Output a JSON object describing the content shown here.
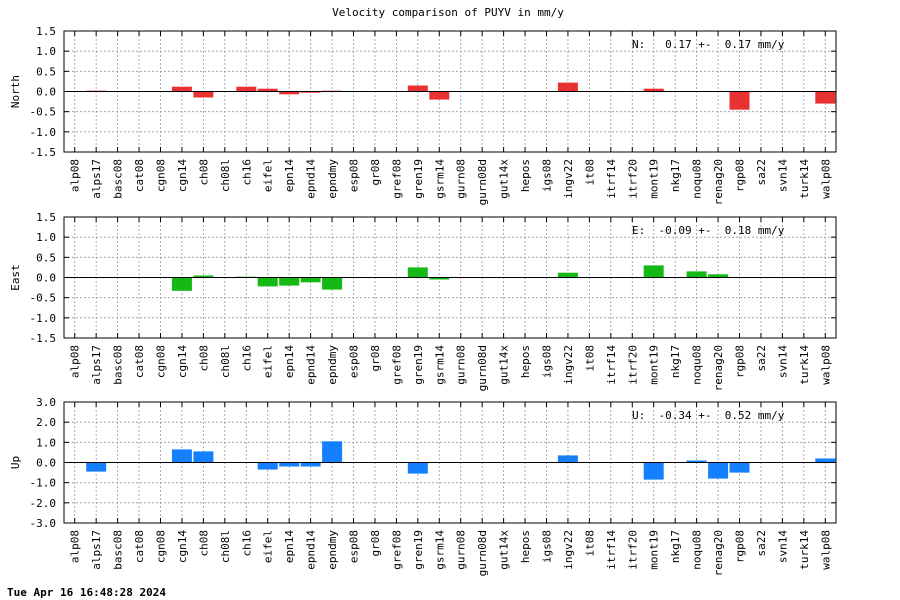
{
  "title": "Velocity comparison of PUYV in mm/y",
  "timestamp": "Tue Apr 16 16:48:28 2024",
  "colors": {
    "north": "#e83232",
    "east": "#14b914",
    "up": "#1480ff"
  },
  "chart_data": [
    {
      "type": "bar",
      "ylabel": "North",
      "ylim": [
        -1.5,
        1.5
      ],
      "yticks": [
        "-1.5",
        "-1.0",
        "-0.5",
        "0.0",
        "0.5",
        "1.0",
        "1.5"
      ],
      "ytick_values": [
        -1.5,
        -1.0,
        -0.5,
        0.0,
        0.5,
        1.0,
        1.5
      ],
      "annotation": "N:   0.17 +-  0.17 mm/y",
      "grid": true,
      "color": "#e83232",
      "categories": [
        "alp08",
        "alps17",
        "basc08",
        "cat08",
        "cgn08",
        "cgn14",
        "ch08",
        "ch08l",
        "ch16",
        "eifel",
        "epn14",
        "epnd14",
        "epndmy",
        "esp08",
        "gr08",
        "gref08",
        "gren19",
        "gsrm14",
        "gurn08",
        "gurn08d",
        "gut14x",
        "hepos",
        "igs08",
        "ingv22",
        "it08",
        "itrf14",
        "itrf20",
        "mont19",
        "nkg17",
        "noqu08",
        "renag20",
        "rgp08",
        "sa22",
        "svn14",
        "turk14",
        "walp08"
      ],
      "values": [
        0,
        0.02,
        0,
        0,
        0,
        0.12,
        -0.15,
        0,
        0.12,
        0.07,
        -0.07,
        -0.03,
        0.02,
        0,
        0,
        0,
        0.15,
        -0.2,
        0,
        0,
        0,
        0,
        0,
        0.22,
        0,
        0,
        0,
        0.07,
        0,
        0,
        0,
        -0.45,
        0,
        0,
        0,
        -0.3
      ]
    },
    {
      "type": "bar",
      "ylabel": "East",
      "ylim": [
        -1.5,
        1.5
      ],
      "yticks": [
        "-1.5",
        "-1.0",
        "-0.5",
        "0.0",
        "0.5",
        "1.0",
        "1.5"
      ],
      "ytick_values": [
        -1.5,
        -1.0,
        -0.5,
        0.0,
        0.5,
        1.0,
        1.5
      ],
      "annotation": "E:  -0.09 +-  0.18 mm/y",
      "grid": true,
      "color": "#14b914",
      "categories": [
        "alp08",
        "alps17",
        "basc08",
        "cat08",
        "cgn08",
        "cgn14",
        "ch08",
        "ch08l",
        "ch16",
        "eifel",
        "epn14",
        "epnd14",
        "epndmy",
        "esp08",
        "gr08",
        "gref08",
        "gren19",
        "gsrm14",
        "gurn08",
        "gurn08d",
        "gut14x",
        "hepos",
        "igs08",
        "ingv22",
        "it08",
        "itrf14",
        "itrf20",
        "mont19",
        "nkg17",
        "noqu08",
        "renag20",
        "rgp08",
        "sa22",
        "svn14",
        "turk14",
        "walp08"
      ],
      "values": [
        0,
        0,
        0,
        0,
        0,
        -0.33,
        0.05,
        0,
        0.02,
        -0.22,
        -0.2,
        -0.12,
        -0.3,
        0,
        0,
        0,
        0.25,
        -0.05,
        0,
        0,
        0,
        0,
        0,
        0.12,
        0,
        0,
        0,
        0.3,
        0,
        0.15,
        0.08,
        0,
        0,
        0,
        0,
        0
      ]
    },
    {
      "type": "bar",
      "ylabel": "Up",
      "ylim": [
        -3.0,
        3.0
      ],
      "yticks": [
        "-3.0",
        "-2.0",
        "-1.0",
        "0.0",
        "1.0",
        "2.0",
        "3.0"
      ],
      "ytick_values": [
        -3.0,
        -2.0,
        -1.0,
        0.0,
        1.0,
        2.0,
        3.0
      ],
      "annotation": "U:  -0.34 +-  0.52 mm/y",
      "grid": true,
      "color": "#1480ff",
      "categories": [
        "alp08",
        "alps17",
        "basc08",
        "cat08",
        "cgn08",
        "cgn14",
        "ch08",
        "ch08l",
        "ch16",
        "eifel",
        "epn14",
        "epnd14",
        "epndmy",
        "esp08",
        "gr08",
        "gref08",
        "gren19",
        "gsrm14",
        "gurn08",
        "gurn08d",
        "gut14x",
        "hepos",
        "igs08",
        "ingv22",
        "it08",
        "itrf14",
        "itrf20",
        "mont19",
        "nkg17",
        "noqu08",
        "renag20",
        "rgp08",
        "sa22",
        "svn14",
        "turk14",
        "walp08"
      ],
      "values": [
        0,
        -0.45,
        0,
        0,
        0,
        0.65,
        0.55,
        0,
        0,
        -0.35,
        -0.2,
        -0.2,
        1.05,
        0,
        0,
        0,
        -0.55,
        0,
        0,
        0,
        0,
        0,
        0,
        0.35,
        0,
        0,
        0,
        -0.85,
        0,
        0.1,
        -0.8,
        -0.5,
        0,
        0,
        0,
        0.2
      ]
    }
  ]
}
